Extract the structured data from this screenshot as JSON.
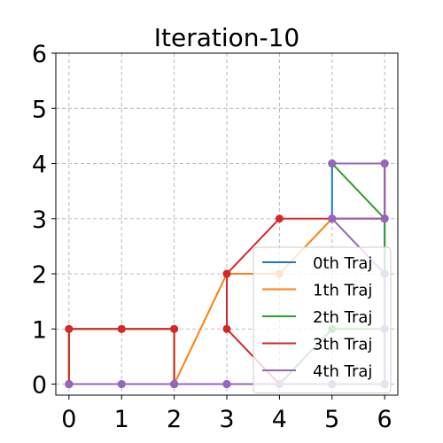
{
  "chart_data": {
    "type": "line",
    "title": "Iteration-10",
    "xlabel": "",
    "ylabel": "",
    "xlim": [
      -0.25,
      6.25
    ],
    "ylim": [
      -0.2,
      6.0
    ],
    "xticks": [
      "0",
      "1",
      "2",
      "3",
      "4",
      "5",
      "6"
    ],
    "yticks": [
      "0",
      "1",
      "2",
      "3",
      "4",
      "5",
      "6"
    ],
    "grid": true,
    "legend_position": "lower-right",
    "series": [
      {
        "name": "0th Traj",
        "color": "#1f77b4",
        "x": [
          0,
          1,
          2,
          3,
          4,
          5,
          6,
          6,
          6,
          6,
          6,
          5,
          5
        ],
        "y": [
          0,
          0,
          0,
          0,
          0,
          0,
          0,
          1,
          2,
          3,
          4,
          4,
          3
        ]
      },
      {
        "name": "1th Traj",
        "color": "#ff7f0e",
        "x": [
          0,
          0,
          1,
          2,
          2,
          3,
          4,
          5,
          6,
          6,
          5
        ],
        "y": [
          0,
          1,
          1,
          1,
          0,
          2,
          2,
          3,
          3,
          4,
          4
        ]
      },
      {
        "name": "2th Traj",
        "color": "#2ca02c",
        "x": [
          0,
          0,
          1,
          2,
          2,
          3,
          4,
          5,
          6,
          6,
          6,
          5
        ],
        "y": [
          0,
          1,
          1,
          1,
          0,
          0,
          0,
          1,
          1,
          2,
          3,
          4
        ]
      },
      {
        "name": "3th Traj",
        "color": "#d62728",
        "x": [
          0,
          0,
          1,
          2,
          2,
          3,
          4,
          5,
          6,
          6,
          5,
          4,
          3,
          3,
          4,
          5,
          6,
          6
        ],
        "y": [
          0,
          1,
          1,
          1,
          0,
          0,
          0,
          0,
          0,
          0,
          0,
          0,
          1,
          2,
          3,
          3,
          3,
          4
        ]
      },
      {
        "name": "4th Traj",
        "color": "#9467bd",
        "x": [
          0,
          1,
          2,
          3,
          4,
          5,
          6,
          6,
          6,
          5,
          6,
          6,
          5
        ],
        "y": [
          0,
          0,
          0,
          0,
          0,
          0,
          0,
          1,
          2,
          3,
          3,
          4,
          4
        ]
      }
    ]
  }
}
